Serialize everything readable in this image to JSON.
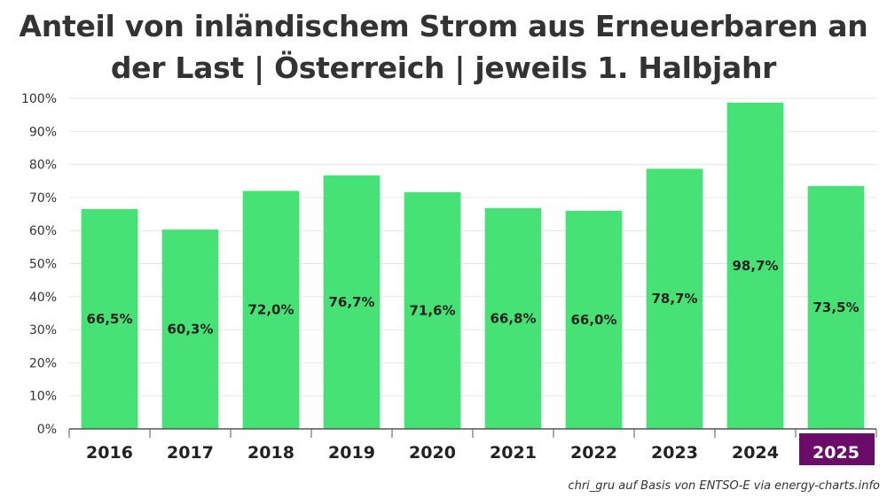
{
  "title_line1": "Anteil von inländischem Strom aus Erneuerbaren an",
  "title_line2": "der Last | Österreich | jeweils 1. Halbjahr",
  "source": "chri_gru auf Basis von ENTSO-E via energy-charts.info",
  "colors": {
    "bar": "#47e275",
    "highlight": "#6b0c6b",
    "grid": "#e6e6e6",
    "axis": "#888888"
  },
  "chart_data": {
    "type": "bar",
    "title": "Anteil von inländischem Strom aus Erneuerbaren an der Last | Österreich | jeweils 1. Halbjahr",
    "xlabel": "",
    "ylabel": "",
    "categories": [
      "2016",
      "2017",
      "2018",
      "2019",
      "2020",
      "2021",
      "2022",
      "2023",
      "2024",
      "2025"
    ],
    "values": [
      66.5,
      60.3,
      72.0,
      76.7,
      71.6,
      66.8,
      66.0,
      78.7,
      98.7,
      73.5
    ],
    "value_labels": [
      "66,5%",
      "60,3%",
      "72,0%",
      "76,7%",
      "71,6%",
      "66,8%",
      "66,0%",
      "78,7%",
      "98,7%",
      "73,5%"
    ],
    "highlight_category": "2025",
    "ylim": [
      0,
      100
    ],
    "yticks": [
      0,
      10,
      20,
      30,
      40,
      50,
      60,
      70,
      80,
      90,
      100
    ],
    "ytick_labels": [
      "0%",
      "10%",
      "20%",
      "30%",
      "40%",
      "50%",
      "60%",
      "70%",
      "80%",
      "90%",
      "100%"
    ],
    "grid": true
  }
}
